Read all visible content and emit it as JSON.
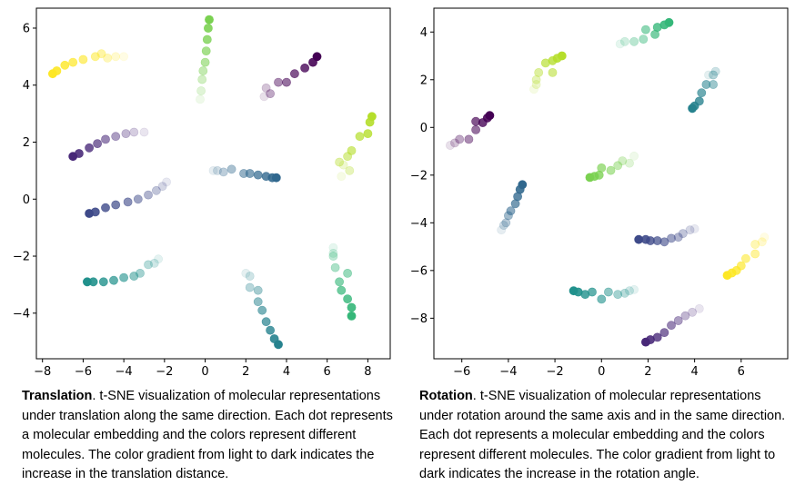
{
  "captions": {
    "left": {
      "title": "Translation",
      "text": "t-SNE visualization of molecular representations under translation along the same direction. Each dot represents a molecular embedding and the colors represent different molecules. The color gradient from light to dark indicates the increase in the translation distance."
    },
    "right": {
      "title": "Rotation",
      "text": "t-SNE visualization of molecular representations under rotation around the same axis and in the same direction. Each dot represents a molecular embedding and the colors represent different molecules. The color gradient from light to dark indicates the increase in the rotation angle."
    }
  },
  "chart_data": [
    {
      "type": "scatter",
      "title": "",
      "xlabel": "",
      "ylabel": "",
      "xlim": [
        -8.3,
        9.1
      ],
      "ylim": [
        -5.6,
        6.7
      ],
      "xticks": [
        -8,
        -6,
        -4,
        -2,
        0,
        2,
        4,
        6,
        8
      ],
      "yticks": [
        -4,
        -2,
        0,
        2,
        4,
        6
      ],
      "grid": false,
      "series": [
        {
          "color": "#fde725",
          "points": [
            [
              -7.5,
              4.4
            ],
            [
              -7.3,
              4.5
            ],
            [
              -6.9,
              4.7
            ],
            [
              -6.5,
              4.8
            ],
            [
              -6.0,
              4.9
            ],
            [
              -5.4,
              5.0
            ],
            [
              -5.1,
              5.1
            ],
            [
              -4.8,
              4.95
            ],
            [
              -4.4,
              5.0
            ],
            [
              -4.0,
              5.0
            ]
          ]
        },
        {
          "color": "#7ad151",
          "points": [
            [
              0.2,
              6.3
            ],
            [
              0.15,
              6.0
            ],
            [
              0.1,
              5.6
            ],
            [
              0.05,
              5.2
            ],
            [
              0.0,
              4.8
            ],
            [
              -0.1,
              4.5
            ],
            [
              -0.15,
              4.2
            ],
            [
              -0.2,
              3.8
            ],
            [
              -0.25,
              3.5
            ]
          ]
        },
        {
          "color": "#440154",
          "points": [
            [
              5.5,
              5.0
            ],
            [
              5.3,
              4.8
            ],
            [
              4.9,
              4.6
            ],
            [
              4.4,
              4.4
            ],
            [
              4.0,
              4.1
            ],
            [
              3.6,
              4.1
            ],
            [
              3.2,
              3.7
            ],
            [
              3.0,
              3.9
            ],
            [
              2.9,
              3.6
            ]
          ]
        },
        {
          "color": "#482878",
          "points": [
            [
              -6.5,
              1.5
            ],
            [
              -6.2,
              1.6
            ],
            [
              -5.7,
              1.8
            ],
            [
              -5.3,
              1.95
            ],
            [
              -4.9,
              2.1
            ],
            [
              -4.4,
              2.2
            ],
            [
              -3.9,
              2.3
            ],
            [
              -3.5,
              2.35
            ],
            [
              -3.0,
              2.35
            ]
          ]
        },
        {
          "color": "#b5de2b",
          "points": [
            [
              8.2,
              2.9
            ],
            [
              8.1,
              2.7
            ],
            [
              8.0,
              2.3
            ],
            [
              7.6,
              2.2
            ],
            [
              7.2,
              1.7
            ],
            [
              7.0,
              1.5
            ],
            [
              6.6,
              1.3
            ],
            [
              7.1,
              1.0
            ],
            [
              6.8,
              1.2
            ],
            [
              6.7,
              0.8
            ]
          ]
        },
        {
          "color": "#31688e",
          "points": [
            [
              3.5,
              0.75
            ],
            [
              3.3,
              0.75
            ],
            [
              3.0,
              0.8
            ],
            [
              2.6,
              0.85
            ],
            [
              2.2,
              0.9
            ],
            [
              1.9,
              0.9
            ],
            [
              1.3,
              1.05
            ],
            [
              0.9,
              0.95
            ],
            [
              0.6,
              1.0
            ],
            [
              0.4,
              1.0
            ]
          ]
        },
        {
          "color": "#3e4a89",
          "points": [
            [
              -5.7,
              -0.5
            ],
            [
              -5.4,
              -0.45
            ],
            [
              -4.9,
              -0.3
            ],
            [
              -4.4,
              -0.2
            ],
            [
              -3.8,
              -0.1
            ],
            [
              -3.3,
              0.0
            ],
            [
              -2.8,
              0.15
            ],
            [
              -2.4,
              0.3
            ],
            [
              -2.1,
              0.45
            ],
            [
              -1.9,
              0.6
            ]
          ]
        },
        {
          "color": "#21918c",
          "points": [
            [
              -5.8,
              -2.9
            ],
            [
              -5.5,
              -2.9
            ],
            [
              -5.0,
              -2.9
            ],
            [
              -4.5,
              -2.85
            ],
            [
              -4.0,
              -2.75
            ],
            [
              -3.5,
              -2.7
            ],
            [
              -3.2,
              -2.6
            ],
            [
              -2.8,
              -2.3
            ],
            [
              -2.5,
              -2.25
            ],
            [
              -2.3,
              -2.1
            ]
          ]
        },
        {
          "color": "#35b779",
          "points": [
            [
              7.2,
              -4.1
            ],
            [
              7.2,
              -3.8
            ],
            [
              7.0,
              -3.5
            ],
            [
              6.7,
              -3.2
            ],
            [
              6.6,
              -2.9
            ],
            [
              7.0,
              -2.6
            ],
            [
              6.4,
              -2.4
            ],
            [
              6.3,
              -2.0
            ],
            [
              6.3,
              -1.9
            ],
            [
              6.3,
              -1.7
            ]
          ]
        },
        {
          "color": "#26828e",
          "points": [
            [
              3.6,
              -5.1
            ],
            [
              3.4,
              -4.9
            ],
            [
              3.2,
              -4.6
            ],
            [
              3.0,
              -4.3
            ],
            [
              2.8,
              -3.9
            ],
            [
              2.6,
              -3.6
            ],
            [
              2.6,
              -3.2
            ],
            [
              2.2,
              -3.1
            ],
            [
              2.2,
              -2.7
            ],
            [
              2.0,
              -2.6
            ]
          ]
        }
      ]
    },
    {
      "type": "scatter",
      "title": "",
      "xlabel": "",
      "ylabel": "",
      "xlim": [
        -7.2,
        8.0
      ],
      "ylim": [
        -9.7,
        5.0
      ],
      "xticks": [
        -6,
        -4,
        -2,
        0,
        2,
        4,
        6
      ],
      "yticks": [
        -8,
        -6,
        -4,
        -2,
        0,
        2,
        4
      ],
      "grid": false,
      "series": [
        {
          "color": "#35b779",
          "points": [
            [
              2.9,
              4.4
            ],
            [
              2.7,
              4.3
            ],
            [
              2.4,
              4.2
            ],
            [
              2.3,
              3.9
            ],
            [
              1.9,
              4.1
            ],
            [
              1.8,
              3.7
            ],
            [
              1.4,
              3.6
            ],
            [
              1.0,
              3.6
            ],
            [
              0.8,
              3.5
            ]
          ]
        },
        {
          "color": "#b5de2b",
          "points": [
            [
              -1.7,
              3.0
            ],
            [
              -1.9,
              2.9
            ],
            [
              -2.1,
              2.8
            ],
            [
              -2.4,
              2.7
            ],
            [
              -2.1,
              2.3
            ],
            [
              -2.7,
              2.3
            ],
            [
              -2.8,
              2.0
            ],
            [
              -2.8,
              1.8
            ],
            [
              -2.9,
              1.6
            ]
          ]
        },
        {
          "color": "#440154",
          "points": [
            [
              -4.8,
              0.5
            ],
            [
              -4.9,
              0.4
            ],
            [
              -5.1,
              0.2
            ],
            [
              -5.4,
              0.25
            ],
            [
              -5.4,
              -0.1
            ],
            [
              -5.7,
              -0.5
            ],
            [
              -6.1,
              -0.5
            ],
            [
              -6.3,
              -0.65
            ],
            [
              -6.5,
              -0.75
            ]
          ]
        },
        {
          "color": "#26828e",
          "points": [
            [
              3.9,
              0.8
            ],
            [
              4.0,
              0.9
            ],
            [
              4.2,
              1.1
            ],
            [
              4.3,
              1.45
            ],
            [
              4.5,
              1.8
            ],
            [
              4.8,
              1.8
            ],
            [
              4.8,
              2.2
            ],
            [
              4.9,
              2.35
            ],
            [
              4.6,
              2.2
            ]
          ]
        },
        {
          "color": "#7ad151",
          "points": [
            [
              -0.5,
              -2.1
            ],
            [
              -0.3,
              -2.05
            ],
            [
              -0.1,
              -2.0
            ],
            [
              0.0,
              -1.7
            ],
            [
              0.4,
              -1.8
            ],
            [
              0.7,
              -1.6
            ],
            [
              0.9,
              -1.4
            ],
            [
              1.2,
              -1.5
            ],
            [
              1.4,
              -1.2
            ]
          ]
        },
        {
          "color": "#31688e",
          "points": [
            [
              -3.4,
              -2.4
            ],
            [
              -3.5,
              -2.6
            ],
            [
              -3.6,
              -2.9
            ],
            [
              -3.7,
              -3.2
            ],
            [
              -3.9,
              -3.5
            ],
            [
              -4.0,
              -3.7
            ],
            [
              -4.1,
              -4.0
            ],
            [
              -4.2,
              -4.1
            ],
            [
              -4.3,
              -4.3
            ]
          ]
        },
        {
          "color": "#3e4a89",
          "points": [
            [
              1.6,
              -4.7
            ],
            [
              1.9,
              -4.7
            ],
            [
              2.1,
              -4.75
            ],
            [
              2.4,
              -4.75
            ],
            [
              2.7,
              -4.8
            ],
            [
              3.0,
              -4.65
            ],
            [
              3.3,
              -4.6
            ],
            [
              3.5,
              -4.45
            ],
            [
              3.8,
              -4.3
            ],
            [
              4.0,
              -4.25
            ]
          ]
        },
        {
          "color": "#fde725",
          "points": [
            [
              5.4,
              -6.2
            ],
            [
              5.6,
              -6.1
            ],
            [
              5.8,
              -6.0
            ],
            [
              6.0,
              -5.8
            ],
            [
              6.2,
              -5.5
            ],
            [
              6.6,
              -5.3
            ],
            [
              6.6,
              -4.9
            ],
            [
              6.9,
              -4.8
            ],
            [
              7.0,
              -4.6
            ]
          ]
        },
        {
          "color": "#21918c",
          "points": [
            [
              -1.2,
              -6.85
            ],
            [
              -1.0,
              -6.9
            ],
            [
              -0.7,
              -7.0
            ],
            [
              -0.4,
              -6.9
            ],
            [
              0.0,
              -7.2
            ],
            [
              0.3,
              -6.9
            ],
            [
              0.7,
              -7.0
            ],
            [
              1.0,
              -6.95
            ],
            [
              1.2,
              -6.85
            ],
            [
              1.4,
              -6.8
            ]
          ]
        },
        {
          "color": "#482878",
          "points": [
            [
              1.9,
              -9.0
            ],
            [
              2.1,
              -8.9
            ],
            [
              2.4,
              -8.8
            ],
            [
              2.7,
              -8.6
            ],
            [
              3.0,
              -8.3
            ],
            [
              3.3,
              -8.1
            ],
            [
              3.6,
              -7.9
            ],
            [
              3.9,
              -7.75
            ],
            [
              4.2,
              -7.6
            ]
          ]
        }
      ]
    }
  ]
}
